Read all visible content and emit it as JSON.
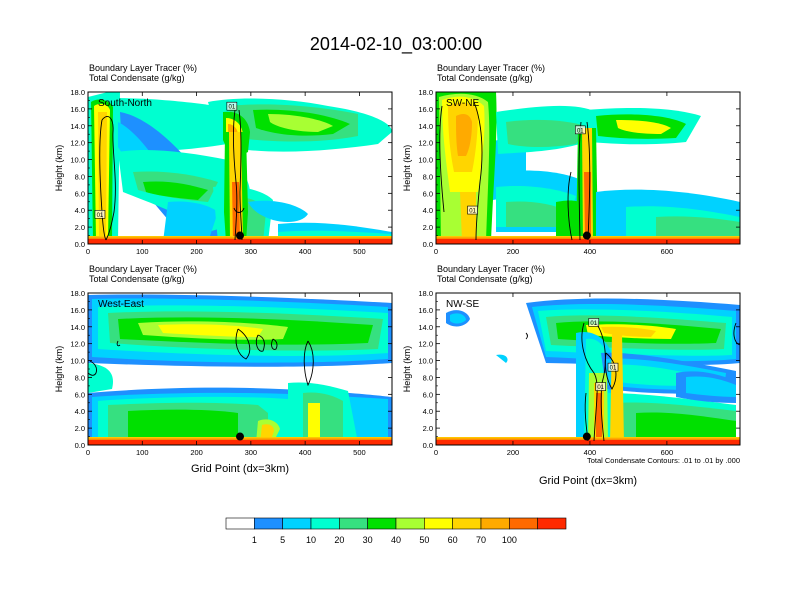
{
  "title": "2014-02-10_03:00:00",
  "subtitle_lines": [
    "Boundary Layer Tracer   (%)",
    "Total Condensate   (g/kg)"
  ],
  "xlabel": "Grid Point (dx=3km)",
  "ylabel": "Height (km)",
  "contour_note": "Total Condensate Contours: .01 to .01 by .000",
  "colorbar": {
    "labels": [
      "1",
      "5",
      "10",
      "20",
      "30",
      "40",
      "50",
      "60",
      "70",
      "100"
    ],
    "colors": [
      "#ffffff",
      "#1e90ff",
      "#00d2ff",
      "#00ffd0",
      "#36e080",
      "#00e000",
      "#a8ff33",
      "#ffff00",
      "#ffd500",
      "#ffaa00",
      "#ff6a00",
      "#ff2a00"
    ]
  },
  "chart_data": [
    {
      "type": "heatmap",
      "label": "South-North",
      "ylim": [
        0,
        18
      ],
      "yticks": [
        "0.0",
        "2.0",
        "4.0",
        "6.0",
        "8.0",
        "10.0",
        "12.0",
        "14.0",
        "16.0",
        "18.0"
      ],
      "xlim": [
        0,
        560
      ],
      "xticks": [
        0,
        100,
        200,
        300,
        400,
        500
      ],
      "marker": [
        280,
        1.0
      ],
      "contour_labels": [
        {
          "text": "01",
          "x": 265,
          "y": 16.2
        },
        {
          "text": "01",
          "x": 22,
          "y": 3.4
        }
      ]
    },
    {
      "type": "heatmap",
      "label": "SW-NE",
      "ylim": [
        0,
        18
      ],
      "yticks": [
        "0.0",
        "2.0",
        "4.0",
        "6.0",
        "8.0",
        "10.0",
        "12.0",
        "14.0",
        "16.0",
        "18.0"
      ],
      "xlim": [
        0,
        790
      ],
      "xticks": [
        0,
        200,
        400,
        600
      ],
      "marker": [
        392,
        1.0
      ],
      "contour_labels": [
        {
          "text": "01",
          "x": 375,
          "y": 13.4
        },
        {
          "text": "01",
          "x": 95,
          "y": 3.9
        }
      ]
    },
    {
      "type": "heatmap",
      "label": "West-East",
      "ylim": [
        0,
        18
      ],
      "yticks": [
        "0.0",
        "2.0",
        "4.0",
        "6.0",
        "8.0",
        "10.0",
        "12.0",
        "14.0",
        "16.0",
        "18.0"
      ],
      "xlim": [
        0,
        560
      ],
      "xticks": [
        0,
        100,
        200,
        300,
        400,
        500
      ],
      "marker": [
        280,
        1.0
      ],
      "contour_labels": []
    },
    {
      "type": "heatmap",
      "label": "NW-SE",
      "ylim": [
        0,
        18
      ],
      "yticks": [
        "0.0",
        "2.0",
        "4.0",
        "6.0",
        "8.0",
        "10.0",
        "12.0",
        "14.0",
        "16.0",
        "18.0"
      ],
      "xlim": [
        0,
        790
      ],
      "xticks": [
        0,
        200,
        400,
        600
      ],
      "marker": [
        392,
        1.0
      ],
      "contour_labels": [
        {
          "text": "01",
          "x": 410,
          "y": 14.4
        },
        {
          "text": "01",
          "x": 460,
          "y": 9.1
        },
        {
          "text": "01",
          "x": 428,
          "y": 6.8
        }
      ]
    }
  ]
}
